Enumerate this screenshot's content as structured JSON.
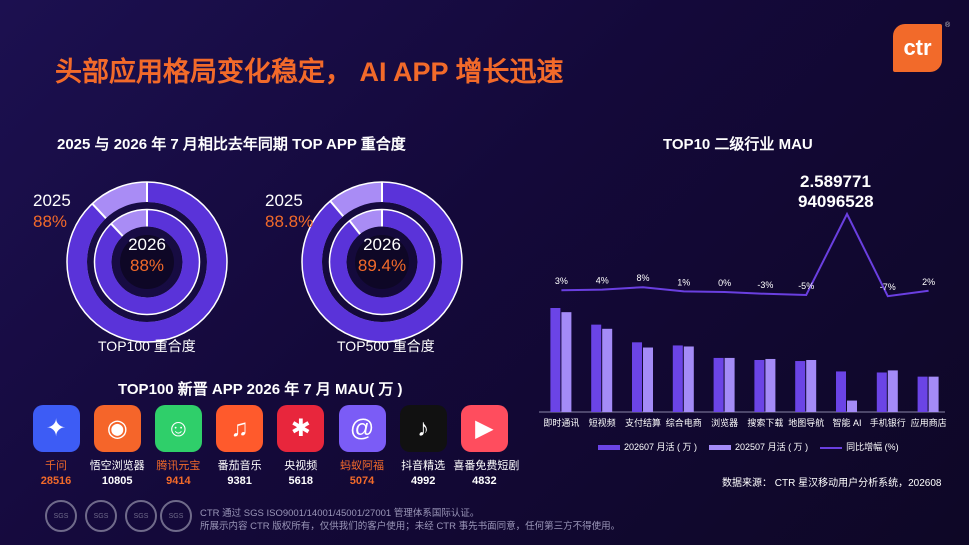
{
  "header": {
    "title": "头部应用格局变化稳定， AI APP 增长迅速",
    "logo_text": "ctr",
    "logo_reg": "®"
  },
  "overlap": {
    "title": "2025 与 2026 年 7 月相比去年同期 TOP APP 重合度",
    "donuts": [
      {
        "year_outer": "2025",
        "pct_outer": "88%",
        "year_inner": "2026",
        "pct_inner": "88%",
        "caption": "TOP100 重合度",
        "outer_value": 88,
        "inner_value": 88
      },
      {
        "year_outer": "2025",
        "pct_outer": "88.8%",
        "year_inner": "2026",
        "pct_inner": "89.4%",
        "caption": "TOP500 重合度",
        "outer_value": 88.8,
        "inner_value": 89.4
      }
    ]
  },
  "new_apps": {
    "title": "TOP100 新晋 APP 2026 年 7 月 MAU( 万 )",
    "items": [
      {
        "name": "千问",
        "value": "28516",
        "highlight": true,
        "icon": "qianwen-icon",
        "color": "#3d5cf5"
      },
      {
        "name": "悟空浏览器",
        "value": "10805",
        "highlight": false,
        "icon": "wukong-browser-icon",
        "color": "#f5652a"
      },
      {
        "name": "腾讯元宝",
        "value": "9414",
        "highlight": true,
        "icon": "yuanbao-icon",
        "color": "#2fcf6a"
      },
      {
        "name": "番茄音乐",
        "value": "9381",
        "highlight": false,
        "icon": "fanqie-music-icon",
        "color": "#ff5a2c"
      },
      {
        "name": "央视频",
        "value": "5618",
        "highlight": false,
        "icon": "cctv-video-icon",
        "color": "#e8263c"
      },
      {
        "name": "蚂蚁阿福",
        "value": "5074",
        "highlight": true,
        "icon": "mayi-afu-icon",
        "color": "#7b5cf6"
      },
      {
        "name": "抖音精选",
        "value": "4992",
        "highlight": false,
        "icon": "douyin-jingxuan-icon",
        "color": "#111111"
      },
      {
        "name": "喜番免费短剧",
        "value": "4832",
        "highlight": false,
        "icon": "xifan-drama-icon",
        "color": "#ff4d5e"
      }
    ]
  },
  "chart_data": {
    "type": "bar",
    "title": "TOP10 二级行业 MAU",
    "categories": [
      "即时通讯",
      "短视频",
      "支付结算",
      "综合电商",
      "浏览器",
      "搜索下载",
      "地图导航",
      "智能 AI",
      "手机银行",
      "应用商店"
    ],
    "series": [
      {
        "name": "202607 月活 ( 万 )",
        "values": [
          100,
          84,
          67,
          64,
          52,
          50,
          49,
          39,
          38,
          34
        ],
        "color": "#6b44e6"
      },
      {
        "name": "202507 月活 ( 万 )",
        "values": [
          96,
          80,
          62,
          63,
          52,
          51,
          50,
          11,
          40,
          34
        ],
        "color": "#a48bf7"
      }
    ],
    "line": {
      "name": "同比增幅 (%)",
      "values": [
        3,
        4,
        8,
        1,
        0,
        -3,
        -5,
        258.9771,
        -7,
        2
      ],
      "labels": [
        "3%",
        "4%",
        "8%",
        "1%",
        "0%",
        "-3%",
        "-5%",
        "",
        "-7%",
        "2%"
      ],
      "color": "#6a3fe0"
    },
    "peak_labels": [
      "2.589771",
      "94096528"
    ],
    "legend_position": "bottom"
  },
  "footer": {
    "line1": "CTR 通过 SGS ISO9001/14001/45001/27001 管理体系国际认证。",
    "line2": "所展示内容 CTR 版权所有，仅供我们的客户使用；未经 CTR 事先书面同意，任何第三方不得使用。",
    "seal_text": "SGS",
    "source": "数据来源： CTR 星汉移动用户分析系统，202608"
  }
}
